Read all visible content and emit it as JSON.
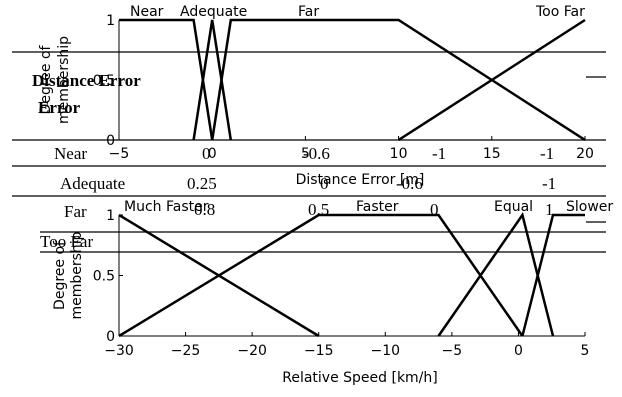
{
  "chart_data": [
    {
      "type": "line",
      "xlabel": "Distance Error [m]",
      "ylabel": "Degree of membership",
      "xlim": [
        -5,
        20
      ],
      "ylim": [
        0,
        1
      ],
      "xticks": [
        "−5",
        "0",
        "5",
        "10",
        "15",
        "20"
      ],
      "yticks": [
        "0",
        "0.5",
        "1"
      ],
      "series": [
        {
          "name": "Near",
          "x": [
            -5,
            -1,
            0
          ],
          "y": [
            1,
            1,
            0
          ]
        },
        {
          "name": "Adequate",
          "x": [
            -1,
            0,
            1
          ],
          "y": [
            0,
            1,
            0
          ]
        },
        {
          "name": "Far",
          "x": [
            0,
            1,
            10,
            20
          ],
          "y": [
            0,
            1,
            1,
            0
          ]
        },
        {
          "name": "Too Far",
          "x": [
            10,
            20
          ],
          "y": [
            0,
            1
          ]
        }
      ]
    },
    {
      "type": "line",
      "xlabel": "Relative Speed [km/h]",
      "ylabel": "Degree of membership",
      "xlim": [
        -30,
        5
      ],
      "ylim": [
        0,
        1
      ],
      "xticks": [
        "−30",
        "−25",
        "−20",
        "−15",
        "−10",
        "−5",
        "0",
        "5"
      ],
      "yticks": [
        "0",
        "0.5",
        "1"
      ],
      "series": [
        {
          "name": "Much Faster",
          "x": [
            -30,
            -15
          ],
          "y": [
            1,
            0
          ]
        },
        {
          "name": "Faster",
          "x": [
            -30,
            -15,
            -6,
            0.3
          ],
          "y": [
            0,
            1,
            1,
            0
          ]
        },
        {
          "name": "Equal",
          "x": [
            -6,
            0.3,
            2.6
          ],
          "y": [
            0,
            1,
            0
          ]
        },
        {
          "name": "Slower",
          "x": [
            0.3,
            2.6,
            5
          ],
          "y": [
            0,
            1,
            1
          ]
        }
      ]
    }
  ],
  "table": {
    "header": "Distance Error",
    "rows": [
      {
        "label": "Near",
        "values": [
          "0",
          "-0.6",
          "-1",
          "-1"
        ]
      },
      {
        "label": "Adequate",
        "values": [
          "0.25",
          "0",
          "-0.6",
          "-1"
        ]
      },
      {
        "label": "Far",
        "values": [
          "0.8",
          "0.5",
          "0",
          "1"
        ]
      },
      {
        "label": "Too Far",
        "values": []
      }
    ]
  }
}
